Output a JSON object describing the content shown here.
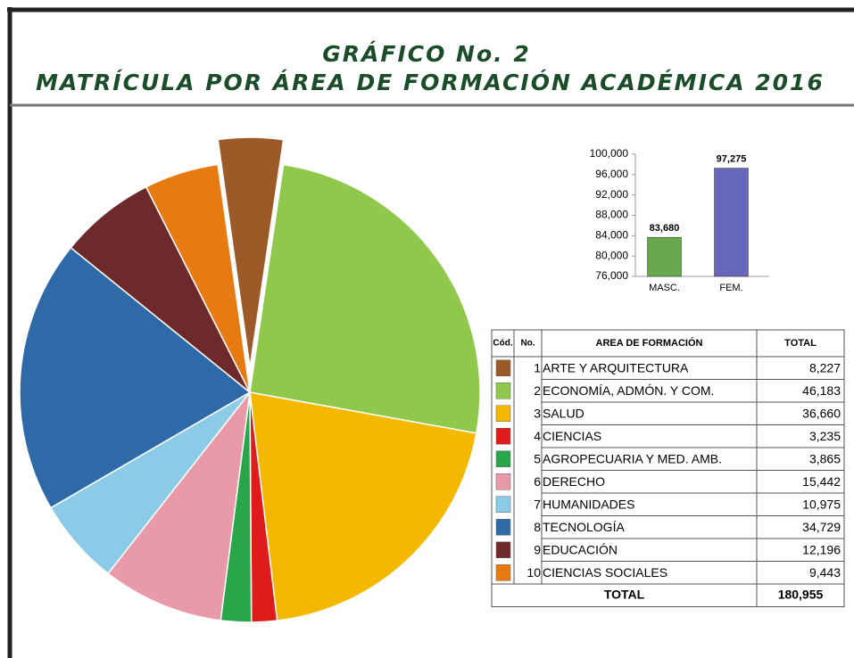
{
  "header": {
    "title": "GRÁFICO No. 2",
    "subtitle": "MATRÍCULA  POR ÁREA DE FORMACIÓN ACADÉMICA 2016"
  },
  "chart_data": [
    {
      "type": "pie",
      "categories": [
        "ARTE Y ARQUITECTURA",
        "ECONOMÍA, ADMÓN. Y COM.",
        "SALUD",
        "CIENCIAS",
        "AGROPECUARIA Y MED. AMB.",
        "DERECHO",
        "HUMANIDADES",
        "TECNOLOGÍA",
        "EDUCACIÓN",
        "CIENCIAS SOCIALES"
      ],
      "values": [
        8227,
        46183,
        36660,
        3235,
        3865,
        15442,
        10975,
        34729,
        12196,
        9443
      ],
      "value_labels": [
        "8,227",
        "46,183",
        "36,660",
        "3,235",
        "3,865",
        "15,442",
        "10,975",
        "34,729",
        "12,196",
        "9,443"
      ],
      "colors": [
        "#9c5a28",
        "#8fc84a",
        "#f5b800",
        "#e01b1b",
        "#2aa64a",
        "#e89aa8",
        "#8ccbe8",
        "#2e6aa8",
        "#6e2a2a",
        "#e77a10"
      ]
    },
    {
      "type": "bar",
      "categories": [
        "MASC.",
        "FEM."
      ],
      "values": [
        83680,
        97275
      ],
      "value_labels": [
        "83,680",
        "97,275"
      ],
      "colors": [
        "#6aa84f",
        "#6666bb"
      ],
      "ylim": [
        76000,
        100000
      ],
      "yticks": [
        {
          "value": 76000,
          "label": "76,000"
        },
        {
          "value": 80000,
          "label": "80,000"
        },
        {
          "value": 84000,
          "label": "84,000"
        },
        {
          "value": 88000,
          "label": "88,000"
        },
        {
          "value": 92000,
          "label": "92,000"
        },
        {
          "value": 96000,
          "label": "96,000"
        },
        {
          "value": 100000,
          "label": "100,000"
        }
      ]
    }
  ],
  "table": {
    "headers": [
      "Cód.",
      "No.",
      "AREA DE FORMACIÓN",
      "TOTAL"
    ],
    "numbers": [
      1,
      2,
      3,
      4,
      5,
      6,
      7,
      8,
      9,
      10
    ],
    "total_label": "TOTAL",
    "total": "180,955"
  }
}
